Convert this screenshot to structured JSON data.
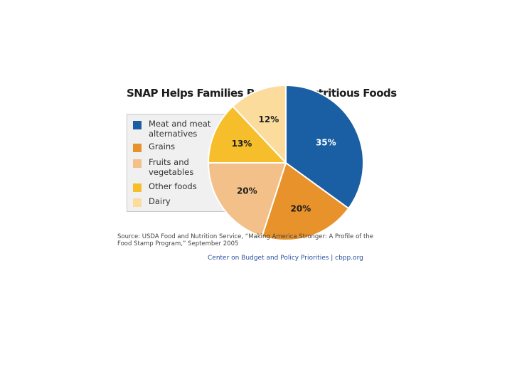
{
  "chart_data": {
    "type": "pie",
    "title": "SNAP Helps Families Purchase Nutritious Foods",
    "slices": [
      {
        "label": "Meat and meat alternatives",
        "value": 35,
        "value_label": "35%",
        "color": "#1a5fa3"
      },
      {
        "label": "Grains",
        "value": 20,
        "value_label": "20%",
        "color": "#e8922b"
      },
      {
        "label": "Fruits and vegetables",
        "value": 20,
        "value_label": "20%",
        "color": "#f2c088"
      },
      {
        "label": "Other foods",
        "value": 13,
        "value_label": "13%",
        "color": "#f6be2a"
      },
      {
        "label": "Dairy",
        "value": 12,
        "value_label": "12%",
        "color": "#fbdc9c"
      }
    ],
    "legend_position": "left",
    "source": "Source: USDA Food and Nutrition Service, “Making America Stronger: A Profile of the Food Stamp Program,” September 2005",
    "credit": "Center on Budget and Policy Priorities | cbpp.org"
  },
  "legend": [
    {
      "label": "Meat and meat alternatives",
      "color": "#1a5fa3"
    },
    {
      "label": "Grains",
      "color": "#e8922b"
    },
    {
      "label": "Fruits and vegetables",
      "color": "#f2c088"
    },
    {
      "label": "Other foods",
      "color": "#f6be2a"
    },
    {
      "label": "Dairy",
      "color": "#fbdc9c"
    }
  ]
}
